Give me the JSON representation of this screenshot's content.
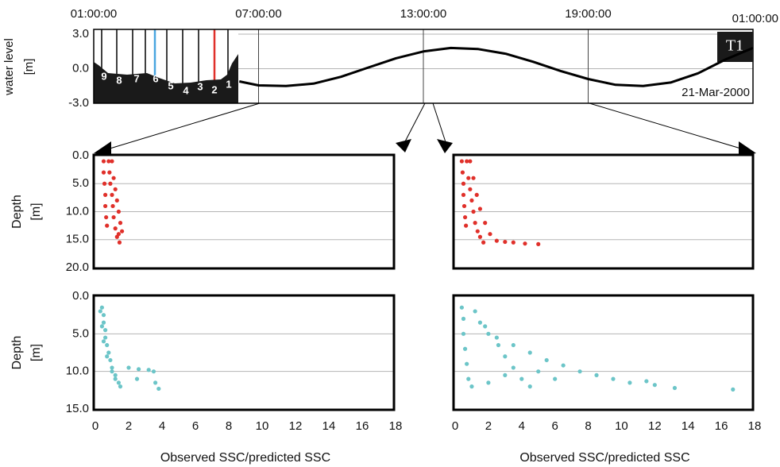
{
  "chart_data": [
    {
      "type": "line",
      "ylabel": [
        "water level",
        "[m]"
      ],
      "xlim": [
        1,
        25
      ],
      "xticks": [
        {
          "value": 1,
          "label": "01:00:00"
        },
        {
          "value": 7,
          "label": "07:00:00"
        },
        {
          "value": 13,
          "label": "13:00:00"
        },
        {
          "value": 19,
          "label": "19:00:00"
        },
        {
          "value": 25,
          "label": "01:00:00"
        }
      ],
      "ylim": [
        -3,
        3
      ],
      "yticks": [
        {
          "value": 3,
          "label": "3.0"
        },
        {
          "value": 0,
          "label": "0.0"
        },
        {
          "value": -3,
          "label": "-3.0"
        }
      ],
      "grid": true,
      "series": [
        {
          "color": "#000000",
          "x": [
            6.3,
            7,
            8,
            9,
            10,
            11,
            12,
            13,
            14,
            15,
            16,
            17,
            18,
            19,
            20,
            21,
            22,
            23,
            24,
            25
          ],
          "values": [
            -1.1,
            -1.45,
            -1.5,
            -1.3,
            -0.7,
            0.1,
            0.9,
            1.5,
            1.8,
            1.7,
            1.3,
            0.6,
            -0.2,
            -0.9,
            -1.4,
            -1.5,
            -1.2,
            -0.4,
            0.8,
            1.8
          ]
        }
      ],
      "inset_labels": [
        "9",
        "8",
        "7",
        "6",
        "5",
        "4",
        "3",
        "2",
        "1"
      ],
      "annotations": [
        "T1",
        "21-Mar-2000"
      ]
    },
    {
      "type": "scatter",
      "ylabel": [
        "Depth",
        "[m]"
      ],
      "y_reversed": true,
      "xlim": [
        0,
        18
      ],
      "ylim": [
        0,
        20
      ],
      "yticks": [
        {
          "value": 0,
          "label": "0.0"
        },
        {
          "value": 5,
          "label": "5.0"
        },
        {
          "value": 10,
          "label": "10.0"
        },
        {
          "value": 15,
          "label": "15.0"
        },
        {
          "value": 20,
          "label": "20.0"
        }
      ],
      "grid": true,
      "series": [
        {
          "color": "#e0302a",
          "x": [
            0.5,
            0.5,
            0.55,
            0.6,
            0.6,
            0.65,
            0.7,
            0.8,
            0.85,
            0.9,
            1.0,
            1.05,
            1.1,
            1.2,
            1.3,
            1.45,
            1.0,
            1.1,
            1.2,
            1.3,
            1.4,
            1.5,
            1.6,
            1.4
          ],
          "values": [
            1,
            3,
            5,
            7,
            9,
            11,
            12.5,
            1,
            3,
            5,
            7,
            9,
            11,
            13,
            14.5,
            15.5,
            1,
            4,
            6,
            8,
            10,
            12,
            13.5,
            14
          ]
        }
      ]
    },
    {
      "type": "scatter",
      "y_reversed": true,
      "xlim": [
        0,
        18
      ],
      "ylim": [
        0,
        20
      ],
      "yticks": [
        0,
        5,
        10,
        15,
        20
      ],
      "grid": true,
      "series": [
        {
          "color": "#e0302a",
          "x": [
            0.4,
            0.45,
            0.5,
            0.5,
            0.55,
            0.6,
            0.65,
            0.7,
            0.8,
            0.9,
            1.0,
            1.1,
            1.2,
            1.35,
            1.5,
            1.7,
            0.9,
            1.1,
            1.3,
            1.5,
            1.8,
            2.1,
            2.5,
            3.0,
            3.5,
            4.2,
            5.0
          ],
          "values": [
            1,
            3,
            5,
            7,
            9,
            11,
            12.5,
            1,
            4,
            6,
            8,
            10,
            12,
            13.5,
            14.5,
            15.5,
            1,
            4,
            7,
            9.5,
            12,
            14,
            15.2,
            15.4,
            15.5,
            15.7,
            15.8
          ]
        }
      ]
    },
    {
      "type": "scatter",
      "ylabel": [
        "Depth",
        "[m]"
      ],
      "y_reversed": true,
      "xlabel": "Observed SSC/predicted SSC",
      "xlim": [
        0,
        18
      ],
      "ylim": [
        0,
        15
      ],
      "xticks": [
        0,
        2,
        4,
        6,
        8,
        10,
        12,
        14,
        16,
        18
      ],
      "yticks": [
        {
          "value": 0,
          "label": "0.0"
        },
        {
          "value": 5,
          "label": "5.0"
        },
        {
          "value": 10,
          "label": "10.0"
        },
        {
          "value": 15,
          "label": "15.0"
        }
      ],
      "grid": true,
      "series": [
        {
          "color": "#6cc5c8",
          "x": [
            0.4,
            0.5,
            0.5,
            0.6,
            0.6,
            0.7,
            0.8,
            0.9,
            1.0,
            1.2,
            1.4,
            1.5,
            0.3,
            0.4,
            0.5,
            0.7,
            1.0,
            1.2,
            2.0,
            2.6,
            3.2,
            3.5,
            3.6,
            3.8,
            2.5
          ],
          "values": [
            1.5,
            2.5,
            3.5,
            4.5,
            5.5,
            6.5,
            7.5,
            8.5,
            9.5,
            10.5,
            11.5,
            12,
            2,
            4,
            6,
            8,
            10,
            11,
            9.5,
            9.7,
            9.8,
            10,
            11.5,
            12.3,
            11
          ]
        }
      ]
    },
    {
      "type": "scatter",
      "y_reversed": true,
      "xlabel": "Observed SSC/predicted SSC",
      "xlim": [
        0,
        18
      ],
      "ylim": [
        0,
        15
      ],
      "xticks": [
        0,
        2,
        4,
        6,
        8,
        10,
        12,
        14,
        16,
        18
      ],
      "yticks": [
        0,
        5,
        10,
        15
      ],
      "grid": true,
      "series": [
        {
          "color": "#6cc5c8",
          "x": [
            0.4,
            0.5,
            0.5,
            0.6,
            0.7,
            0.8,
            1.0,
            1.2,
            1.5,
            2.0,
            2.6,
            3.0,
            3.5,
            4.0,
            4.5,
            1.8,
            2.5,
            3.5,
            4.5,
            5.5,
            6.5,
            7.5,
            8.5,
            9.5,
            10.5,
            11.5,
            12.0,
            13.2,
            16.7,
            5.0,
            6.0,
            3.0,
            2.0
          ],
          "values": [
            1.5,
            3,
            5,
            7,
            9,
            11,
            12,
            2,
            3.5,
            5,
            6.5,
            8,
            9.5,
            11,
            12,
            4,
            5.5,
            6.5,
            7.5,
            8.5,
            9.2,
            10,
            10.5,
            11,
            11.5,
            11.3,
            11.8,
            12.2,
            12.4,
            10,
            11,
            10.5,
            11.5
          ]
        }
      ]
    }
  ]
}
